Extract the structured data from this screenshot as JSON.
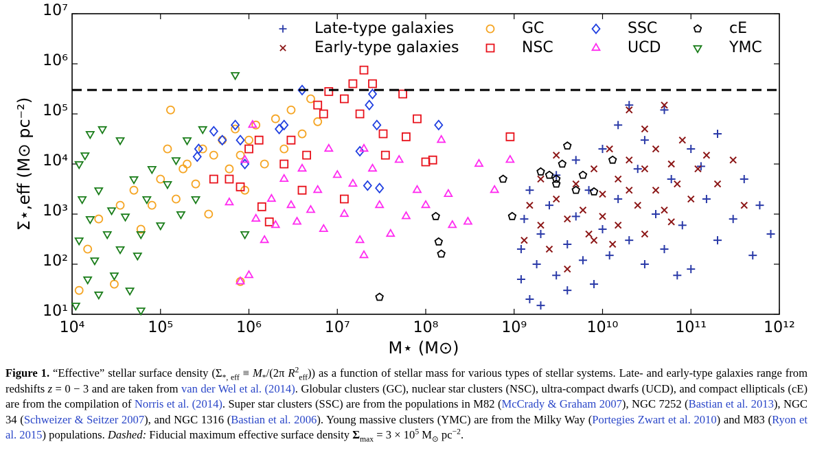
{
  "chart_data": {
    "type": "scatter",
    "xlabel": "M⋆ (M⊙)",
    "ylabel": "Σ⋆,eff (M⊙ pc⁻²)",
    "xscale": "log",
    "yscale": "log",
    "xlim": [
      10000.0,
      1000000000000.0
    ],
    "ylim": [
      10,
      10000000.0
    ],
    "xticks": [
      {
        "value": 10000.0,
        "label": "10⁴"
      },
      {
        "value": 100000.0,
        "label": "10⁵"
      },
      {
        "value": 1000000.0,
        "label": "10⁶"
      },
      {
        "value": 10000000.0,
        "label": "10⁷"
      },
      {
        "value": 100000000.0,
        "label": "10⁸"
      },
      {
        "value": 1000000000.0,
        "label": "10⁹"
      },
      {
        "value": 10000000000.0,
        "label": "10¹⁰"
      },
      {
        "value": 100000000000.0,
        "label": "10¹¹"
      },
      {
        "value": 1000000000000.0,
        "label": "10¹²"
      }
    ],
    "yticks": [
      {
        "value": 10,
        "label": "10¹"
      },
      {
        "value": 100,
        "label": "10²"
      },
      {
        "value": 1000,
        "label": "10³"
      },
      {
        "value": 10000.0,
        "label": "10⁴"
      },
      {
        "value": 100000.0,
        "label": "10⁵"
      },
      {
        "value": 1000000.0,
        "label": "10⁶"
      },
      {
        "value": 10000000.0,
        "label": "10⁷"
      }
    ],
    "hline": 300000.0,
    "legend": "upper right",
    "series": [
      {
        "name": "Late-type galaxies",
        "marker": "plus",
        "color": "#2a3aa8",
        "x": [
          1200000000.0,
          1200000000.0,
          1300000000.0,
          1500000000.0,
          1500000000.0,
          1800000000.0,
          2000000000.0,
          2000000000.0,
          2500000000.0,
          3000000000.0,
          3000000000.0,
          4000000000.0,
          4000000000.0,
          5000000000.0,
          5000000000.0,
          6000000000.0,
          7000000000.0,
          8000000000.0,
          10000000000.0,
          10000000000.0,
          12000000000.0,
          15000000000.0,
          15000000000.0,
          20000000000.0,
          25000000000.0,
          30000000000.0,
          30000000000.0,
          40000000000.0,
          50000000000.0,
          50000000000.0,
          60000000000.0,
          80000000000.0,
          100000000000.0,
          100000000000.0,
          150000000000.0,
          200000000000.0,
          200000000000.0,
          300000000000.0,
          400000000000.0,
          500000000000.0,
          600000000000.0,
          800000000000.0,
          20000000000.0,
          70000000000.0,
          130000000000.0
        ],
        "values": [
          50,
          200,
          800,
          20,
          3000,
          100,
          400,
          15,
          1500,
          60,
          6000,
          250,
          30,
          900,
          12000,
          120,
          3000,
          40,
          500,
          20000,
          150,
          2000,
          60000,
          300,
          8000,
          100,
          30000,
          1000,
          120000,
          200,
          5000,
          600,
          20000,
          80,
          2000,
          300,
          40000,
          800,
          5000,
          150,
          1500,
          400,
          150000,
          60,
          9000
        ]
      },
      {
        "name": "Early-type galaxies",
        "marker": "x",
        "color": "#8b1515",
        "x": [
          1300000000.0,
          1500000000.0,
          2000000000.0,
          2000000000.0,
          2500000000.0,
          3000000000.0,
          3000000000.0,
          4000000000.0,
          4000000000.0,
          5000000000.0,
          6000000000.0,
          7000000000.0,
          8000000000.0,
          10000000000.0,
          10000000000.0,
          12000000000.0,
          15000000000.0,
          15000000000.0,
          20000000000.0,
          20000000000.0,
          25000000000.0,
          30000000000.0,
          30000000000.0,
          40000000000.0,
          40000000000.0,
          50000000000.0,
          60000000000.0,
          70000000000.0,
          80000000000.0,
          100000000000.0,
          120000000000.0,
          150000000000.0,
          200000000000.0,
          300000000000.0,
          50000000000.0,
          20000000000.0,
          400000000000.0,
          8000000000.0,
          13000000000.0,
          30000000000.0,
          60000000000.0
        ],
        "values": [
          300,
          1500,
          600,
          5000,
          200,
          2000,
          15000,
          800,
          80,
          4000,
          1200,
          400,
          8000,
          2500,
          900,
          20000,
          5000,
          600,
          3000,
          12000,
          1500,
          8000,
          50000,
          3000,
          20000,
          1200,
          10000,
          4000,
          30000,
          2000,
          8000,
          15000,
          4000,
          12000,
          150000,
          120000,
          1500,
          300,
          250,
          400,
          700
        ]
      },
      {
        "name": "GC",
        "marker": "circle",
        "color": "#f5a524",
        "x": [
          12000.0,
          15000.0,
          20000.0,
          30000.0,
          35000.0,
          50000.0,
          60000.0,
          80000.0,
          100000.0,
          120000.0,
          150000.0,
          180000.0,
          200000.0,
          250000.0,
          300000.0,
          350000.0,
          400000.0,
          500000.0,
          600000.0,
          700000.0,
          800000.0,
          1000000.0,
          1200000.0,
          1500000.0,
          2000000.0,
          2500000.0,
          3000000.0,
          4000000.0,
          5000000.0,
          6000000.0,
          800000.0,
          130000.0,
          900000.0
        ],
        "values": [
          30,
          200,
          800,
          40,
          1500,
          3000,
          500,
          1500,
          5000,
          20000,
          2000,
          8000,
          10000,
          4000,
          20000,
          1000,
          15000,
          30000,
          8000,
          50000,
          15000,
          30000,
          60000,
          10000,
          80000,
          20000,
          120000,
          40000,
          200000,
          70000,
          45,
          120000,
          3000
        ]
      },
      {
        "name": "NSC",
        "marker": "square",
        "color": "#e8101a",
        "x": [
          400000.0,
          600000.0,
          800000.0,
          1000000.0,
          1400000.0,
          1700000.0,
          3000000.0,
          4500000.0,
          7000000.0,
          8000000.0,
          12000000.0,
          15000000.0,
          20000000.0,
          25000000.0,
          55000000.0,
          60000000.0,
          80000000.0,
          100000000.0,
          120000000.0,
          900000000.0,
          18000000.0,
          12000000.0,
          4000000.0,
          2500000.0,
          6000000.0,
          35000000.0,
          33000000.0,
          1300000.0
        ],
        "values": [
          5000,
          5000,
          3500,
          20000,
          1400,
          700,
          30000,
          15000,
          100000,
          280000,
          200000,
          400000,
          750000,
          400000,
          250000,
          35000,
          80000,
          11000,
          12000,
          35000,
          100000,
          2000,
          3000,
          10000,
          150000,
          15000,
          40000,
          30000
        ]
      },
      {
        "name": "SSC",
        "marker": "diamond",
        "color": "#1f3fe0",
        "x": [
          270000.0,
          260000.0,
          400000.0,
          500000.0,
          700000.0,
          800000.0,
          900000.0,
          2200000.0,
          2500000.0,
          4000000.0,
          25000000.0,
          23000000.0,
          28000000.0,
          140000000.0,
          22000000.0,
          30000000.0,
          18000000.0
        ],
        "values": [
          20000,
          14000,
          45000,
          30000,
          60000,
          30000,
          10000,
          50000,
          60000,
          300000,
          250000,
          150000,
          60000,
          60000,
          3700,
          3300,
          18000
        ]
      },
      {
        "name": "UCD",
        "marker": "triangle",
        "color": "#ff2bf0",
        "x": [
          1000000.0,
          800000.0,
          900000.0,
          1200000.0,
          1500000.0,
          1800000.0,
          2000000.0,
          2500000.0,
          3000000.0,
          3500000.0,
          4000000.0,
          5000000.0,
          6000000.0,
          7000000.0,
          8000000.0,
          10000000.0,
          12000000.0,
          15000000.0,
          18000000.0,
          20000000.0,
          25000000.0,
          30000000.0,
          40000000.0,
          50000000.0,
          60000000.0,
          80000000.0,
          100000000.0,
          150000000.0,
          180000000.0,
          200000000.0,
          300000000.0,
          400000000.0,
          600000000.0,
          900000000.0,
          20000000.0,
          600000.0,
          1100000.0
        ],
        "values": [
          60,
          45,
          12000,
          800,
          300,
          2000,
          600,
          5000,
          1500,
          700,
          8000,
          1200,
          3000,
          500,
          20000,
          6000,
          1000,
          4000,
          300,
          20000,
          8000,
          1500,
          400,
          12000,
          900,
          3000,
          1500,
          30000,
          2500,
          600,
          700,
          10000,
          3000,
          12000,
          150,
          1700,
          60000
        ]
      },
      {
        "name": "cE",
        "marker": "pentagon",
        "color": "#000000",
        "x": [
          30000000.0,
          130000000.0,
          140000000.0,
          150000000.0,
          750000000.0,
          950000000.0,
          2000000000.0,
          3000000000.0,
          3000000000.0,
          4000000000.0,
          5000000000.0,
          6000000000.0,
          8000000000.0,
          13000000000.0,
          3500000000.0,
          2500000000.0
        ],
        "values": [
          22,
          900,
          280,
          160,
          5000,
          900,
          7000,
          4000,
          5000,
          23000,
          3000,
          6000,
          2800,
          12000,
          10000,
          6000
        ]
      },
      {
        "name": "YMC",
        "marker": "triangle-down",
        "color": "#1a7d1a",
        "x": [
          11000.0,
          12000.0,
          13000.0,
          14000.0,
          15000.0,
          16000.0,
          18000.0,
          20000.0,
          20000.0,
          22000.0,
          25000.0,
          28000.0,
          30000.0,
          35000.0,
          35000.0,
          40000.0,
          45000.0,
          50000.0,
          55000.0,
          60000.0,
          60000.0,
          70000.0,
          80000.0,
          100000.0,
          120000.0,
          150000.0,
          170000.0,
          200000.0,
          250000.0,
          300000.0,
          700000.0,
          900000.0,
          16000.0,
          12000.0
        ],
        "values": [
          15,
          300,
          2000,
          15000,
          50,
          800,
          120,
          3000,
          25,
          50000,
          400,
          1200,
          60,
          200,
          30000,
          900,
          30,
          5000,
          150,
          400,
          12,
          2000,
          8000,
          600,
          4000,
          12000,
          1000,
          30000,
          2000,
          50000,
          600000,
          400,
          40000,
          10000
        ]
      }
    ]
  },
  "caption": {
    "segments": [
      {
        "text": "Figure 1.",
        "style": "bold"
      },
      {
        "text": " “Effective” stellar surface density (Σ"
      },
      {
        "text": "*, eff",
        "style": "sub"
      },
      {
        "text": " ≡ "
      },
      {
        "text": "M",
        "style": "italic"
      },
      {
        "text": "*",
        "style": "sub"
      },
      {
        "text": "/(2π "
      },
      {
        "text": "R",
        "style": "italic"
      },
      {
        "text": "2",
        "style": "sup"
      },
      {
        "text": "eff",
        "style": "sub"
      },
      {
        "text": ")) as a function of stellar mass for various types of stellar systems. Late- and early-type galaxies range from redshifts "
      },
      {
        "text": "z",
        "style": "italic"
      },
      {
        "text": " = 0 − 3 and are taken from "
      },
      {
        "text": "van der Wel et al. (2014)",
        "style": "link"
      },
      {
        "text": ". Globular clusters (GC), nuclear star clusters (NSC), ultra-compact dwarfs (UCD), and compact ellipticals (cE) are from the compilation of "
      },
      {
        "text": "Norris et al. (2014)",
        "style": "link"
      },
      {
        "text": ". Super star clusters (SSC) are from the populations in M82 ("
      },
      {
        "text": "McCrady & Graham 2007",
        "style": "link"
      },
      {
        "text": "), NGC 7252 ("
      },
      {
        "text": "Bastian et al. 2013",
        "style": "link"
      },
      {
        "text": "), NGC 34 ("
      },
      {
        "text": "Schweizer & Seitzer 2007",
        "style": "link"
      },
      {
        "text": "), and NGC 1316 ("
      },
      {
        "text": "Bastian et al. 2006",
        "style": "link"
      },
      {
        "text": "). Young massive clusters (YMC) are from the Milky Way ("
      },
      {
        "text": "Portegies Zwart et al. 2010",
        "style": "link"
      },
      {
        "text": ") and M83 ("
      },
      {
        "text": "Ryon et al. 2015",
        "style": "link"
      },
      {
        "text": ") populations. "
      },
      {
        "text": "Dashed:",
        "style": "italic"
      },
      {
        "text": " Fiducial maximum effective surface density "
      },
      {
        "text": "Σ",
        "style": "bold"
      },
      {
        "text": "max",
        "style": "sub"
      },
      {
        "text": " = 3 × 10"
      },
      {
        "text": "5",
        "style": "sup"
      },
      {
        "text": " M"
      },
      {
        "text": "⊙",
        "style": "sub"
      },
      {
        "text": " pc"
      },
      {
        "text": "−2",
        "style": "sup"
      },
      {
        "text": "."
      }
    ]
  }
}
